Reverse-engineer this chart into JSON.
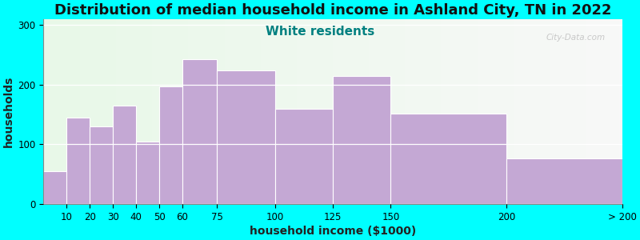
{
  "title": "Distribution of median household income in Ashland City, TN in 2022",
  "subtitle": "White residents",
  "xlabel": "household income ($1000)",
  "ylabel": "households",
  "background_color": "#00FFFF",
  "plot_bg_color_left": "#e8f8e8",
  "plot_bg_color_right": "#f8f8f8",
  "bar_color": "#c4a8d4",
  "bar_edgecolor": "#ffffff",
  "bin_edges": [
    0,
    10,
    20,
    30,
    40,
    50,
    60,
    75,
    100,
    125,
    150,
    200,
    250
  ],
  "bin_labels": [
    "10",
    "20",
    "30",
    "40",
    "50",
    "60",
    "75",
    "100",
    "125",
    "150",
    "200",
    "> 200"
  ],
  "values": [
    55,
    145,
    130,
    165,
    105,
    197,
    242,
    224,
    160,
    215,
    152,
    77
  ],
  "ylim": [
    0,
    310
  ],
  "yticks": [
    0,
    100,
    200,
    300
  ],
  "title_fontsize": 13,
  "subtitle_fontsize": 11,
  "subtitle_color": "#008080",
  "axis_label_fontsize": 10,
  "tick_fontsize": 8.5,
  "watermark_text": "City-Data.com",
  "watermark_color": "#c0c0c0"
}
